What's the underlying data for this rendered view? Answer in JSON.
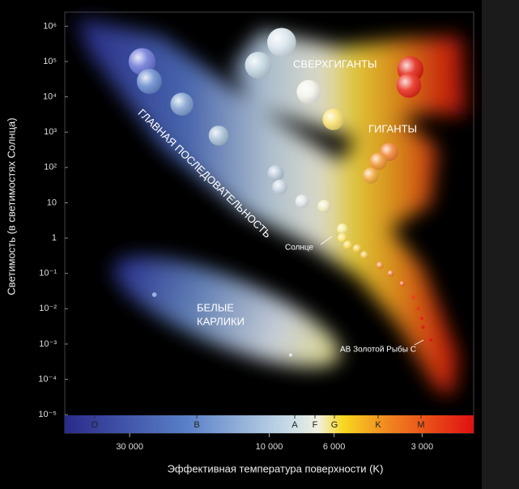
{
  "chart_data": {
    "type": "scatter",
    "y_label": "Светимость (в светимостях Солнца)",
    "x_label": "Эффективная температура поверхности (K)",
    "log_x": true,
    "log_y": true,
    "xlim": [
      50000,
      2000
    ],
    "ylim": [
      3e-06,
      2500000
    ],
    "xticks": [
      {
        "value": 30000,
        "label": "30 000"
      },
      {
        "value": 10000,
        "label": "10 000"
      },
      {
        "value": 6000,
        "label": "6 000"
      },
      {
        "value": 3000,
        "label": "3 000"
      }
    ],
    "yticks": [
      {
        "value": 1000000,
        "label": "10⁶"
      },
      {
        "value": 100000,
        "label": "10⁵"
      },
      {
        "value": 10000,
        "label": "10⁴"
      },
      {
        "value": 1000,
        "label": "10³"
      },
      {
        "value": 100,
        "label": "10²"
      },
      10,
      1,
      {
        "value": 0.1,
        "label": "10⁻¹"
      },
      {
        "value": 0.01,
        "label": "10⁻²"
      },
      {
        "value": 0.001,
        "label": "10⁻³"
      },
      {
        "value": 0.0001,
        "label": "10⁻⁴"
      },
      {
        "value": 1e-05,
        "label": "10⁻⁵"
      }
    ],
    "spectral_classes": [
      "O",
      "B",
      "A",
      "F",
      "G",
      "K",
      "M"
    ],
    "annotations": {
      "supergiants": "СВЕРХГИГАНТЫ",
      "giants": "ГИГАНТЫ",
      "main_sequence": "ГЛАВНАЯ ПОСЛЕДОВАТЕЛЬНОСТЬ",
      "white_dwarfs": [
        "БЕЛЫЕ",
        "КАРЛИКИ"
      ],
      "sun": "Солнце",
      "ab_dor_c": "AB Золотой Рыбы C"
    },
    "x": [
      27200,
      25700,
      19900,
      14900,
      10900,
      9070,
      7330,
      6040,
      3290,
      3330,
      3890,
      4230,
      4500,
      9500,
      9200,
      7720,
      6490,
      5620,
      5620,
      5380,
      5000,
      4720,
      4180,
      3840,
      3510,
      3210,
      3090,
      3010,
      2980,
      2800,
      24700,
      8450
    ],
    "values": [
      100000,
      27500,
      6200,
      800,
      79000,
      350000,
      13700,
      2300,
      60000,
      21000,
      275,
      150,
      59,
      69,
      28,
      11,
      7.9,
      1.8,
      1,
      0.63,
      0.5,
      0.33,
      0.17,
      0.1,
      0.051,
      0.021,
      0.01,
      0.0053,
      0.003,
      0.0013,
      0.025,
      0.00049
    ],
    "colors": [
      "#6a76d6",
      "#6688cc",
      "#7fa0d0",
      "#a8c0d8",
      "#c0d4e0",
      "#d8e4ec",
      "#f2f2ea",
      "#f8e070",
      "#e02010",
      "#e82818",
      "#f08030",
      "#f09530",
      "#f0a838",
      "#b8c8d8",
      "#c8d4e0",
      "#e0e4e8",
      "#f0ecc0",
      "#f8ec90",
      "#f8e060",
      "#f8d850",
      "#f4cc48",
      "#f0c040",
      "#f09030",
      "#f07828",
      "#f06020",
      "#e84818",
      "#e03818",
      "#e02818",
      "#d82010",
      "#d81810",
      "#a0b0e0",
      "#e0e8f0"
    ]
  }
}
